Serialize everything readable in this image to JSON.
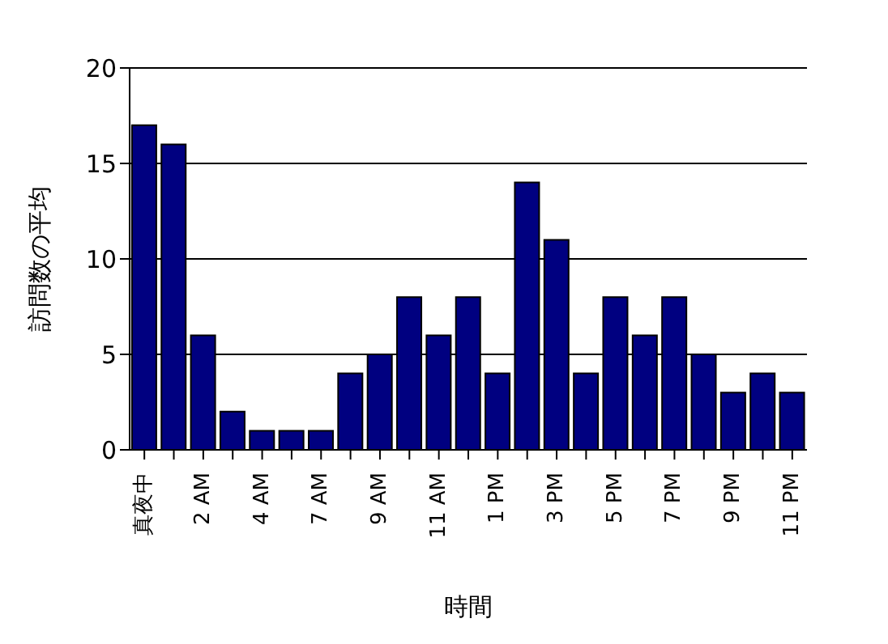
{
  "chart_data": {
    "type": "bar",
    "xlabel": "時間",
    "ylabel": "訪問数の平均",
    "categories": [
      "真夜中",
      null,
      "2 AM",
      null,
      "4 AM",
      null,
      "7 AM",
      null,
      "9 AM",
      null,
      "11 AM",
      null,
      "1 PM",
      null,
      "3 PM",
      null,
      "5 PM",
      null,
      "7 PM",
      null,
      "9 PM",
      null,
      "11 PM"
    ],
    "values": [
      17,
      16,
      6,
      2,
      1,
      1,
      1,
      4,
      5,
      8,
      6,
      8,
      4,
      14,
      11,
      4,
      8,
      6,
      8,
      5,
      3,
      4,
      3
    ],
    "color": "#000080",
    "ylim": [
      0,
      20
    ],
    "yticks": [
      0,
      5,
      10,
      15,
      20
    ],
    "grid": "y"
  }
}
